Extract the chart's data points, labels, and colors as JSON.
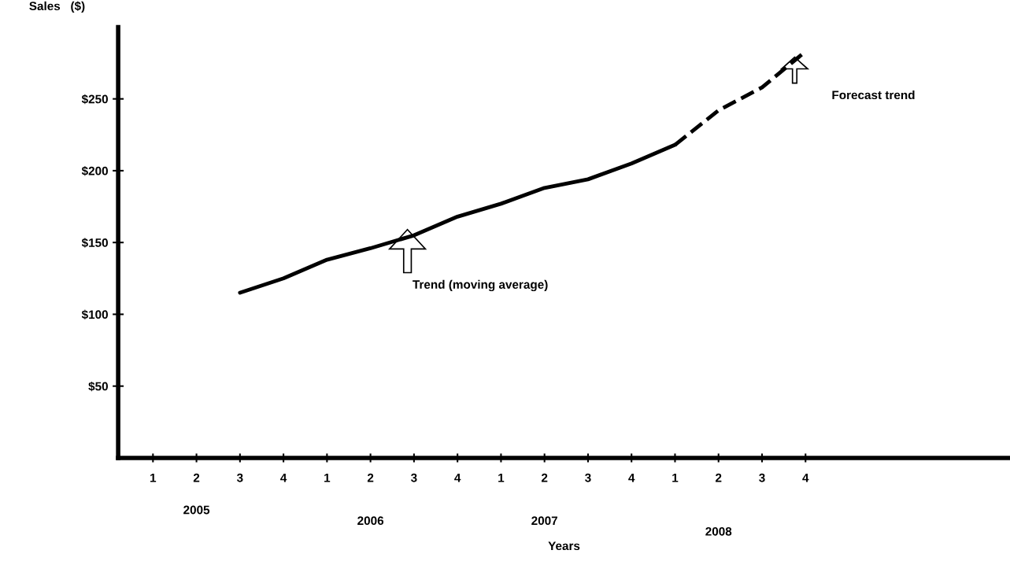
{
  "chart_data": {
    "type": "line",
    "ylabel": "Sales   ($)",
    "xlabel": "Years",
    "categories": [
      "1",
      "2",
      "3",
      "4",
      "1",
      "2",
      "3",
      "4",
      "1",
      "2",
      "3",
      "4",
      "1",
      "2",
      "3",
      "4"
    ],
    "ylim": [
      0,
      300
    ],
    "yticks": [
      {
        "value": 50,
        "label": "$50"
      },
      {
        "value": 100,
        "label": "$100"
      },
      {
        "value": 150,
        "label": "$150"
      },
      {
        "value": 200,
        "label": "$200"
      },
      {
        "value": 250,
        "label": "$250"
      }
    ],
    "grid": false,
    "marker": "none",
    "series": [
      {
        "color": "#000000",
        "line_style": "solid",
        "values": [
          null,
          null,
          115,
          125,
          138,
          146,
          155,
          168,
          177,
          188,
          194,
          205,
          218,
          null,
          null,
          null
        ]
      },
      {
        "color": "#000000",
        "line_style": "dashed",
        "values": [
          null,
          null,
          null,
          null,
          null,
          null,
          null,
          null,
          null,
          null,
          null,
          null,
          218,
          242,
          258,
          283
        ]
      }
    ],
    "annotations": [
      "2005",
      "2006",
      "2007",
      "2008",
      "Trend (moving average)",
      "Forecast trend"
    ]
  }
}
